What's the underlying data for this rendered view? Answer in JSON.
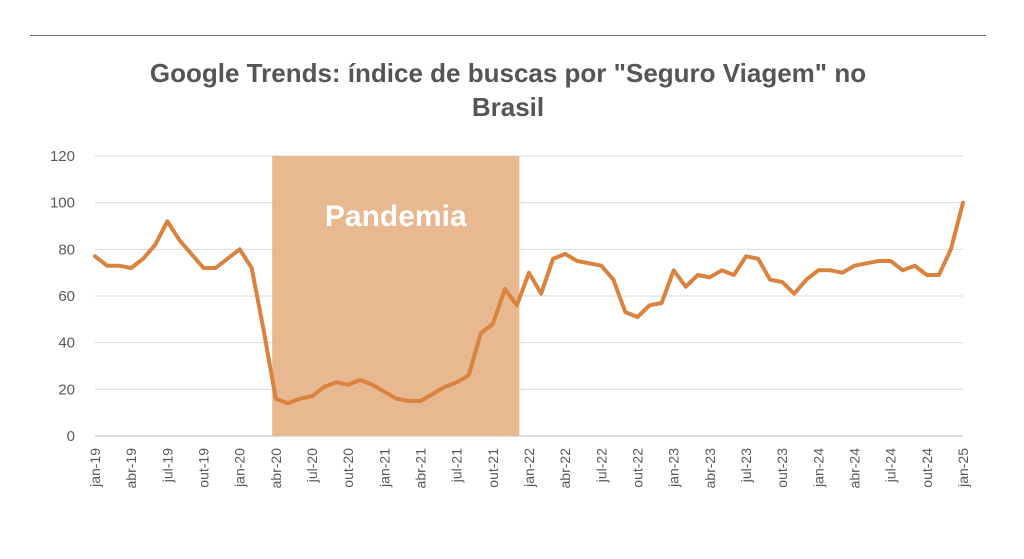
{
  "chart_data": {
    "type": "line",
    "title_lines": [
      "Google Trends: índice de buscas por \"Seguro Viagem\" no",
      "Brasil"
    ],
    "xlabel": "",
    "ylabel": "",
    "ylim": [
      0,
      120
    ],
    "yticks": [
      0,
      20,
      40,
      60,
      80,
      100,
      120
    ],
    "grid": true,
    "line_color": "#d9833f",
    "band_color": "#e8b890",
    "x_tick_labels": [
      "jan-19",
      "abr-19",
      "jul-19",
      "out-19",
      "jan-20",
      "abr-20",
      "jul-20",
      "out-20",
      "jan-21",
      "abr-21",
      "jul-21",
      "out-21",
      "jan-22",
      "abr-22",
      "jul-22",
      "out-22",
      "jan-23",
      "abr-23",
      "jul-23",
      "out-23",
      "jan-24",
      "abr-24",
      "jul-24",
      "out-24",
      "jan-25"
    ],
    "x_tick_index": [
      0,
      3,
      6,
      9,
      12,
      15,
      18,
      21,
      24,
      27,
      30,
      33,
      36,
      39,
      42,
      45,
      48,
      51,
      54,
      57,
      60,
      63,
      66,
      69,
      72
    ],
    "x": [
      "jan-19",
      "fev-19",
      "mar-19",
      "abr-19",
      "mai-19",
      "jun-19",
      "jul-19",
      "ago-19",
      "set-19",
      "out-19",
      "nov-19",
      "dez-19",
      "jan-20",
      "fev-20",
      "mar-20",
      "abr-20",
      "mai-20",
      "jun-20",
      "jul-20",
      "ago-20",
      "set-20",
      "out-20",
      "nov-20",
      "dez-20",
      "jan-21",
      "fev-21",
      "mar-21",
      "abr-21",
      "mai-21",
      "jun-21",
      "jul-21",
      "ago-21",
      "set-21",
      "out-21",
      "nov-21",
      "dez-21",
      "jan-22",
      "fev-22",
      "mar-22",
      "abr-22",
      "mai-22",
      "jun-22",
      "jul-22",
      "ago-22",
      "set-22",
      "out-22",
      "nov-22",
      "dez-22",
      "jan-23",
      "fev-23",
      "mar-23",
      "abr-23",
      "mai-23",
      "jun-23",
      "jul-23",
      "ago-23",
      "set-23",
      "out-23",
      "nov-23",
      "dez-23",
      "jan-24",
      "fev-24",
      "mar-24",
      "abr-24",
      "mai-24",
      "jun-24",
      "jul-24",
      "ago-24",
      "set-24",
      "out-24",
      "nov-24",
      "dez-24",
      "jan-25"
    ],
    "series": [
      {
        "values": [
          77,
          73,
          73,
          72,
          76,
          82,
          92,
          84,
          78,
          72,
          72,
          76,
          80,
          72,
          45,
          16,
          14,
          16,
          17,
          21,
          23,
          22,
          24,
          22,
          19,
          16,
          15,
          15,
          18,
          21,
          23,
          26,
          44,
          48,
          63,
          56,
          70,
          61,
          76,
          78,
          75,
          74,
          73,
          67,
          53,
          51,
          56,
          57,
          71,
          64,
          69,
          68,
          71,
          69,
          77,
          76,
          67,
          66,
          61,
          67,
          71,
          71,
          70,
          73,
          74,
          75,
          75,
          71,
          73,
          69,
          69,
          80,
          100
        ]
      }
    ],
    "shaded_region": {
      "label": "Pandemia",
      "start_index": 14.7,
      "end_index": 35.2
    }
  }
}
